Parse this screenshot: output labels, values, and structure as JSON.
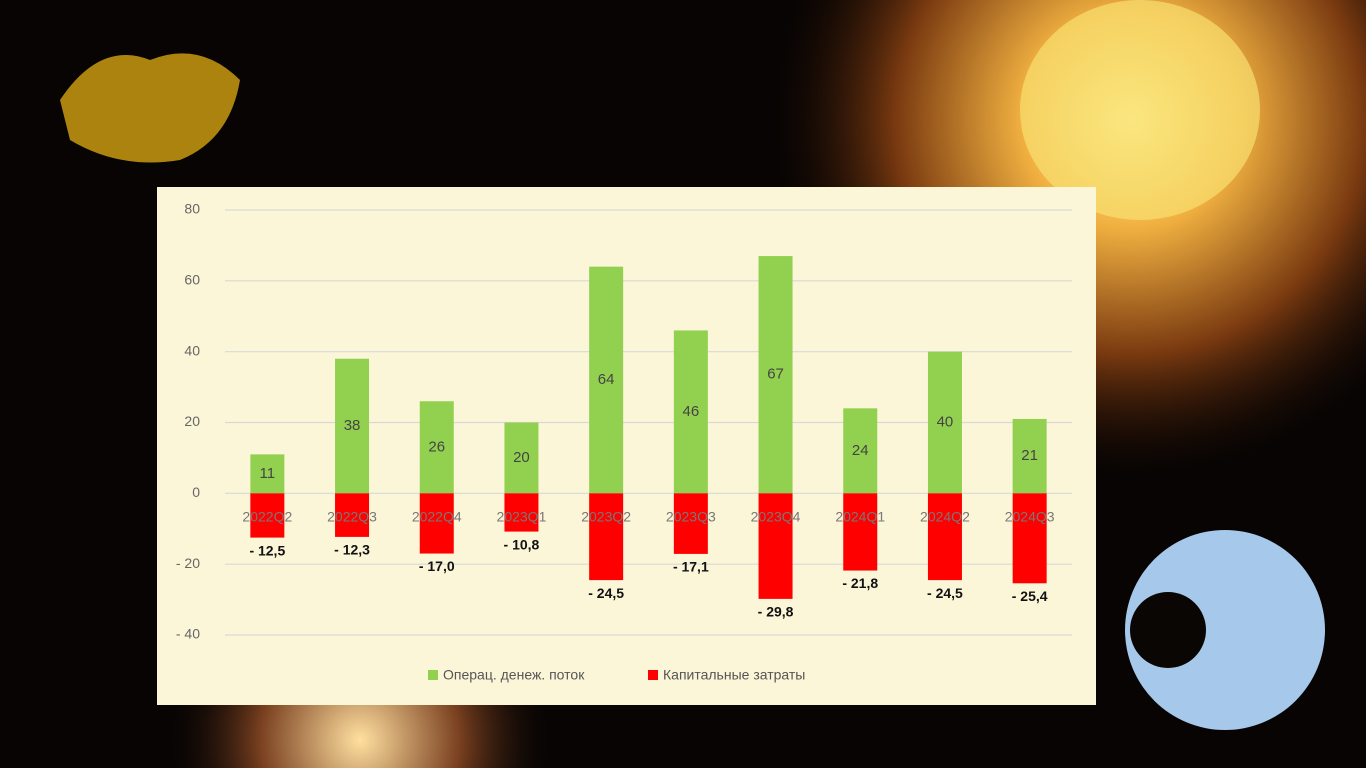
{
  "chart_data": {
    "type": "bar",
    "categories": [
      "2022Q2",
      "2022Q3",
      "2022Q4",
      "2023Q1",
      "2023Q2",
      "2023Q3",
      "2023Q4",
      "2024Q1",
      "2024Q2",
      "2024Q3"
    ],
    "series": [
      {
        "name": "Операц. денеж. поток",
        "color": "#92d050",
        "values": [
          11,
          38,
          26,
          20,
          64,
          46,
          67,
          24,
          40,
          21
        ]
      },
      {
        "name": "Капитальные затраты",
        "color": "#ff0000",
        "values": [
          -12.5,
          -12.3,
          -17.0,
          -10.8,
          -24.5,
          -17.1,
          -29.8,
          -21.8,
          -24.5,
          -25.4
        ],
        "value_labels": [
          "- 12,5",
          "- 12,3",
          "- 17,0",
          "- 10,8",
          "- 24,5",
          "- 17,1",
          "- 29,8",
          "- 21,8",
          "- 24,5",
          "- 25,4"
        ]
      }
    ],
    "ylim": [
      -40,
      80
    ],
    "yticks": [
      80,
      60,
      40,
      20,
      0,
      {
        "value": -20,
        "label": "- 20"
      },
      {
        "value": -40,
        "label": "- 40"
      }
    ],
    "grid": true,
    "legend": "bottom"
  }
}
